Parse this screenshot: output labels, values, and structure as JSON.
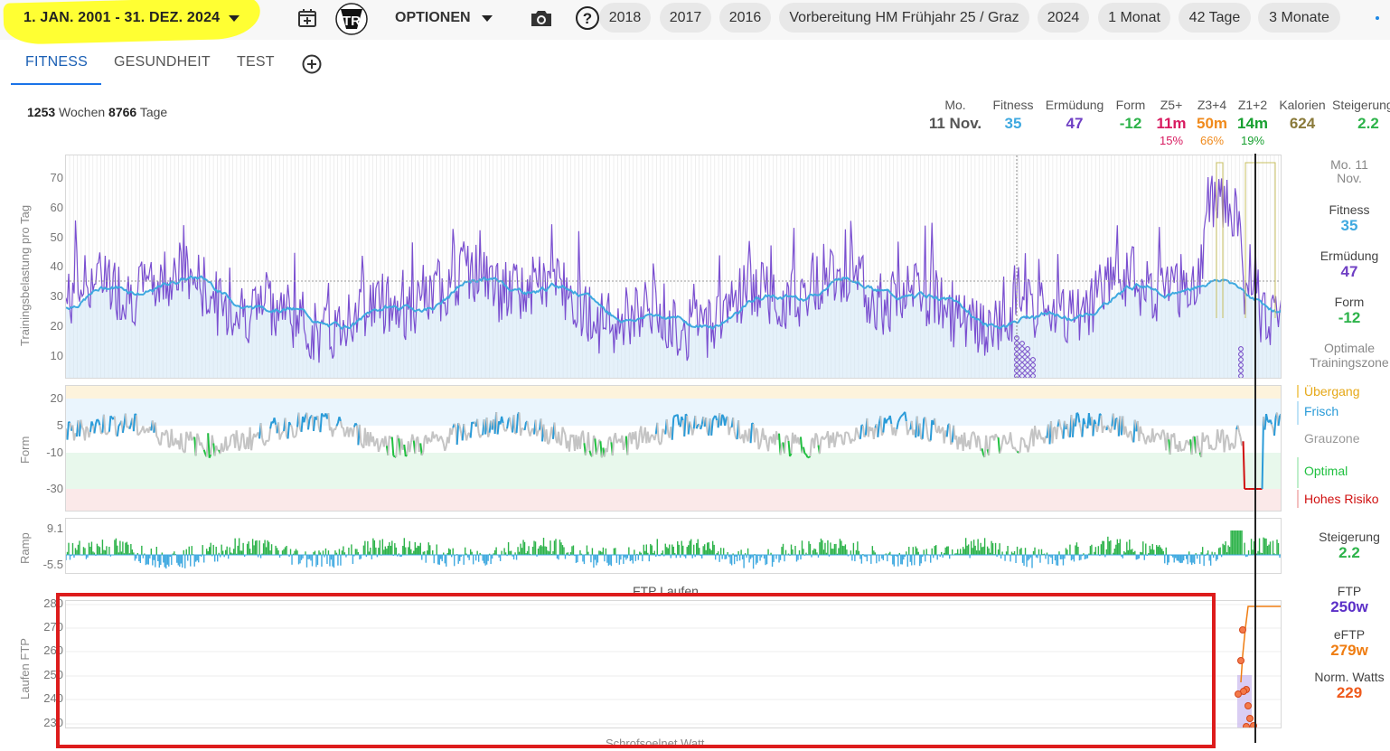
{
  "toolbar": {
    "date_range": "1. JAN. 2001 - 31. DEZ. 2024",
    "options_label": "OPTIONEN",
    "chips": [
      "2018",
      "2017",
      "2016",
      "Vorbereitung HM Frühjahr 25 / Graz",
      "2024",
      "1 Monat",
      "42 Tage",
      "3 Monate"
    ]
  },
  "tabs": [
    "FITNESS",
    "GESUNDHEIT",
    "TEST"
  ],
  "summary": {
    "weeks": "1253",
    "weeks_label": "Wochen",
    "days": "8766",
    "days_label": "Tage"
  },
  "stats": {
    "date_label": "Mo.",
    "date_value": "11 Nov.",
    "fitness_label": "Fitness",
    "fitness_value": "35",
    "fatigue_label": "Ermüdung",
    "fatigue_value": "47",
    "form_label": "Form",
    "form_value": "-12",
    "z5_label": "Z5+",
    "z5_value": "11m",
    "z5_pct": "15%",
    "z34_label": "Z3+4",
    "z34_value": "50m",
    "z34_pct": "66%",
    "z12_label": "Z1+2",
    "z12_value": "14m",
    "z12_pct": "19%",
    "kcal_label": "Kalorien",
    "kcal_value": "624",
    "ramp_label": "Steigerung",
    "ramp_value": "2.2"
  },
  "fitness_chart": {
    "ylabel": "Trainingsbelastung pro Tag",
    "ticks": [
      "70",
      "60",
      "50",
      "40",
      "30",
      "20",
      "10"
    ]
  },
  "form_chart": {
    "ylabel": "Form",
    "ticks": [
      "20",
      "5",
      "-10",
      "-30"
    ]
  },
  "ramp_chart": {
    "ylabel": "Ramp",
    "ticks": [
      "9.1",
      "-5.5"
    ]
  },
  "ftp_chart": {
    "title": "FTP Laufen",
    "ylabel": "Laufen FTP",
    "ticks": [
      "280",
      "270",
      "260",
      "250",
      "240",
      "230"
    ],
    "footer": "Schrofsoelnet Watt"
  },
  "side": {
    "date": "Mo. 11 Nov.",
    "fitness_label": "Fitness",
    "fitness_value": "35",
    "fatigue_label": "Ermüdung",
    "fatigue_value": "47",
    "form_label": "Form",
    "form_value": "-12",
    "zone_label": "Optimale Trainingszone",
    "zones": [
      "Übergang",
      "Frisch",
      "Grauzone",
      "Optimal",
      "Hohes Risiko"
    ],
    "ramp_label": "Steigerung",
    "ramp_value": "2.2",
    "ftp_label": "FTP",
    "ftp_value": "250w",
    "eftp_label": "eFTP",
    "eftp_value": "279w",
    "nw_label": "Norm. Watts",
    "nw_value": "229"
  },
  "colors": {
    "fitness": "#3fa9e0",
    "fatigue": "#6f3fc4",
    "form_pos": "#2db34a",
    "zone5": "#d81b60",
    "zone34": "#f08a1c",
    "kcal": "#8a7a3a",
    "transition": "#e6a817",
    "fresh": "#2a9bd8",
    "grey": "#999999",
    "optimal": "#20c040",
    "risk": "#d01010",
    "ftp": "#5b2fc7",
    "eftp": "#ef7d12",
    "nw": "#ef5a1c"
  }
}
